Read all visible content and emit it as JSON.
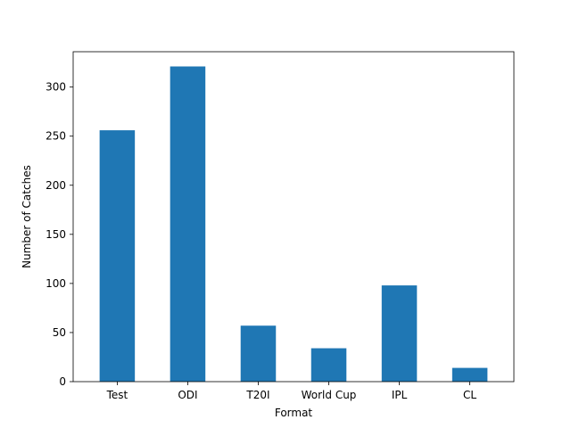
{
  "chart_data": {
    "type": "bar",
    "title": "",
    "xlabel": "Format",
    "ylabel": "Number of Catches",
    "categories": [
      "Test",
      "ODI",
      "T20I",
      "World Cup",
      "IPL",
      "CL"
    ],
    "values": [
      256,
      321,
      57,
      34,
      98,
      14
    ],
    "ylim": [
      0,
      336
    ],
    "yticks": [
      0,
      50,
      100,
      150,
      200,
      250,
      300
    ],
    "grid": false,
    "legend": "none",
    "bar_color": "#1f77b4"
  }
}
